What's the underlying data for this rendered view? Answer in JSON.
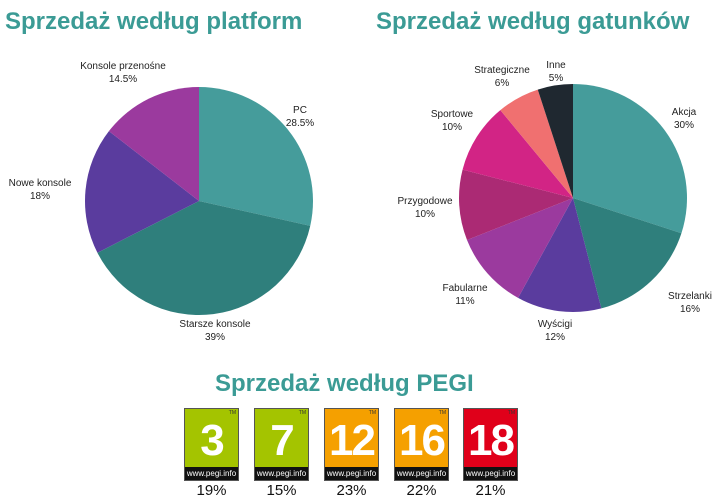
{
  "chart_data": [
    {
      "type": "pie",
      "title": "Sprzedaż według platform",
      "start": "top",
      "direction": "clockwise",
      "slices": [
        {
          "label": "PC",
          "value": 28.5,
          "display": "28.5%",
          "color": "#459c9b"
        },
        {
          "label": "Starsze konsole",
          "value": 39,
          "display": "39%",
          "color": "#2f7f7c"
        },
        {
          "label": "Nowe konsole",
          "value": 18,
          "display": "18%",
          "color": "#5a3c9e"
        },
        {
          "label": "Konsole przenośne",
          "value": 14.5,
          "display": "14.5%",
          "color": "#9b3a9e"
        }
      ]
    },
    {
      "type": "pie",
      "title": "Sprzedaż według gatunków",
      "start": "top",
      "direction": "clockwise",
      "slices": [
        {
          "label": "Akcja",
          "value": 30,
          "display": "30%",
          "color": "#459c9b"
        },
        {
          "label": "Strzelanki",
          "value": 16,
          "display": "16%",
          "color": "#2f7f7c"
        },
        {
          "label": "Wyścigi",
          "value": 12,
          "display": "12%",
          "color": "#5a3c9e"
        },
        {
          "label": "Fabularne",
          "value": 11,
          "display": "11%",
          "color": "#9b3a9e"
        },
        {
          "label": "Przygodowe",
          "value": 10,
          "display": "10%",
          "color": "#ab2a74"
        },
        {
          "label": "Sportowe",
          "value": 10,
          "display": "10%",
          "color": "#d22485"
        },
        {
          "label": "Strategiczne",
          "value": 6,
          "display": "6%",
          "color": "#f07070"
        },
        {
          "label": "Inne",
          "value": 5,
          "display": "5%",
          "color": "#1f2830"
        }
      ]
    },
    {
      "type": "table",
      "title": "Sprzedaż według PEGI",
      "items": [
        {
          "rating": "3",
          "value": 19,
          "display": "19%",
          "color": "#a4c400",
          "url": "www.pegi.info",
          "tm": "TM"
        },
        {
          "rating": "7",
          "value": 15,
          "display": "15%",
          "color": "#a4c400",
          "url": "www.pegi.info",
          "tm": "TM"
        },
        {
          "rating": "12",
          "value": 23,
          "display": "23%",
          "color": "#f5a000",
          "url": "www.pegi.info",
          "tm": "TM"
        },
        {
          "rating": "16",
          "value": 22,
          "display": "22%",
          "color": "#f5a000",
          "url": "www.pegi.info",
          "tm": "TM"
        },
        {
          "rating": "18",
          "value": 21,
          "display": "21%",
          "color": "#e0001a",
          "url": "www.pegi.info",
          "tm": "TM"
        }
      ]
    }
  ]
}
